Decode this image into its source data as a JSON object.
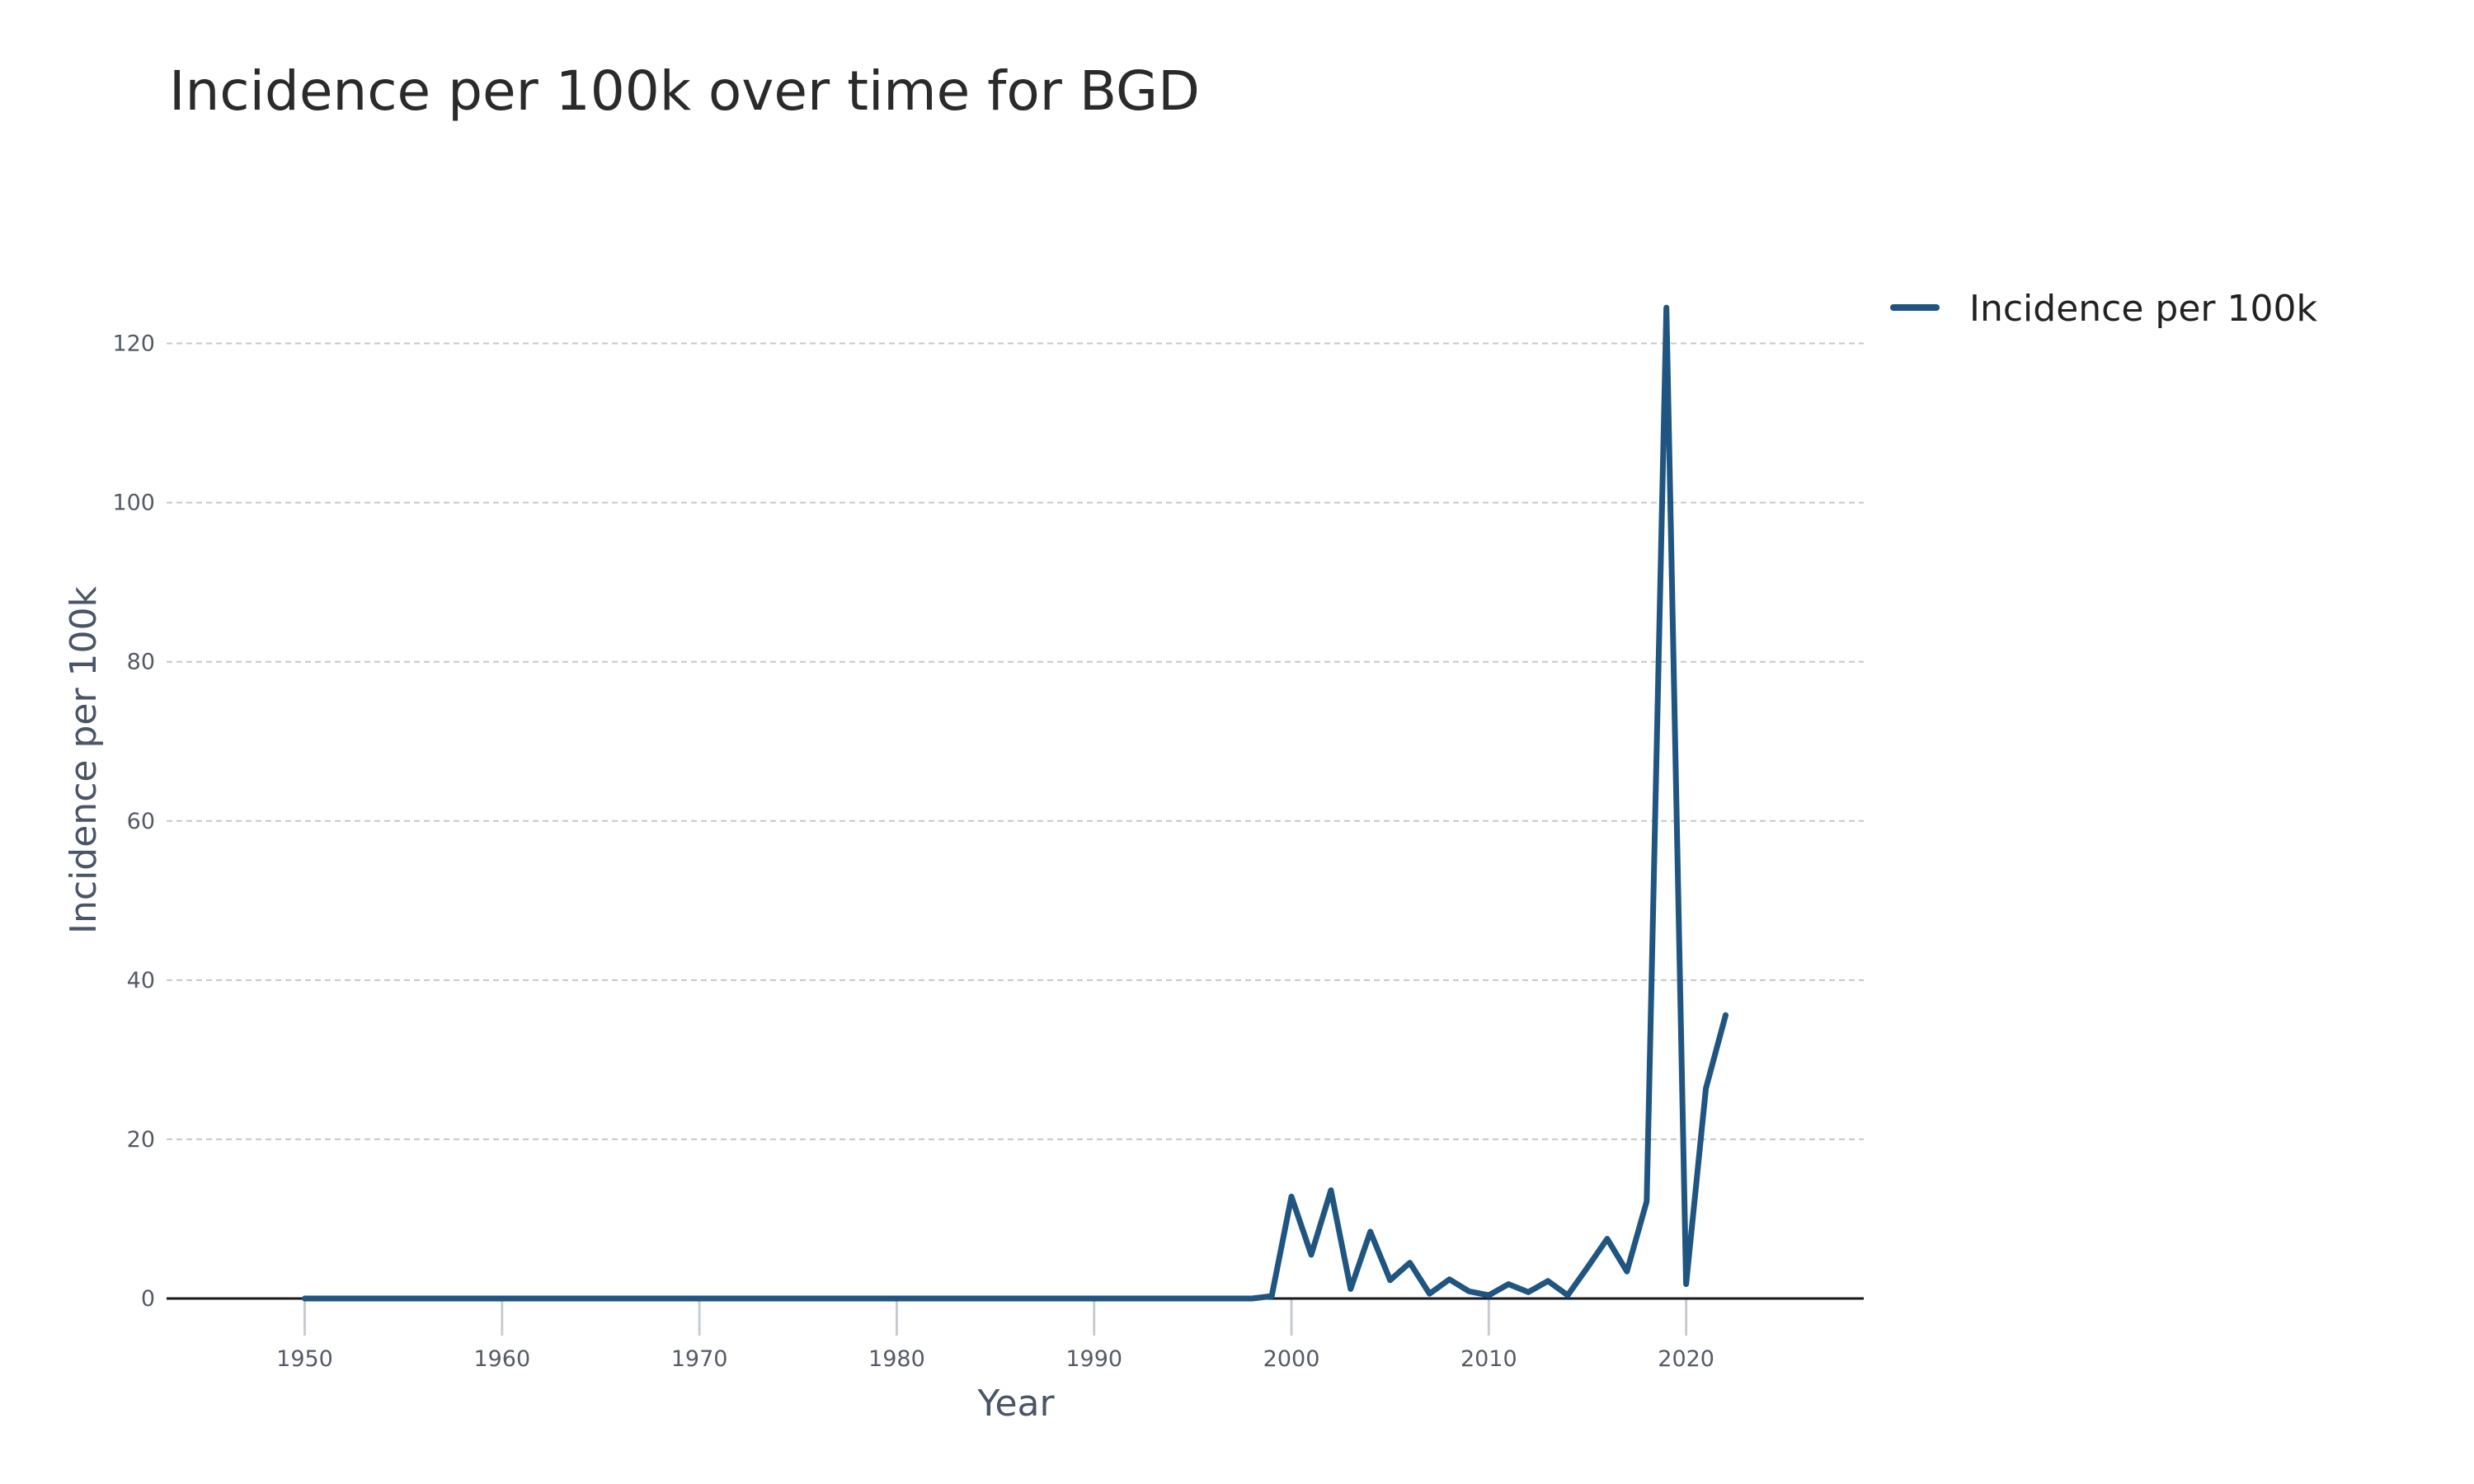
{
  "chart_data": {
    "type": "line",
    "title": "Incidence per 100k over time for BGD",
    "xlabel": "Year",
    "ylabel": "Incidence per 100k",
    "xlim": [
      1943,
      2029
    ],
    "ylim": [
      0,
      130
    ],
    "x_ticks": [
      1950,
      1960,
      1970,
      1980,
      1990,
      2000,
      2010,
      2020
    ],
    "y_ticks": [
      0,
      20,
      40,
      60,
      80,
      100,
      120
    ],
    "grid": "horizontal dashed",
    "legend_position": "top-right outside",
    "series": [
      {
        "name": "Incidence per 100k",
        "color": "#1f5580",
        "x": [
          1950,
          1951,
          1952,
          1953,
          1954,
          1955,
          1956,
          1957,
          1958,
          1959,
          1960,
          1961,
          1962,
          1963,
          1964,
          1965,
          1966,
          1967,
          1968,
          1969,
          1970,
          1971,
          1972,
          1973,
          1974,
          1975,
          1976,
          1977,
          1978,
          1979,
          1980,
          1981,
          1982,
          1983,
          1984,
          1985,
          1986,
          1987,
          1988,
          1989,
          1990,
          1991,
          1992,
          1993,
          1994,
          1995,
          1996,
          1997,
          1998,
          1999,
          2000,
          2001,
          2002,
          2003,
          2004,
          2005,
          2006,
          2007,
          2008,
          2009,
          2010,
          2011,
          2012,
          2013,
          2014,
          2015,
          2016,
          2017,
          2018,
          2019,
          2020,
          2021,
          2022
        ],
        "y": [
          0,
          0,
          0,
          0,
          0,
          0,
          0,
          0,
          0,
          0,
          0,
          0,
          0,
          0,
          0,
          0,
          0,
          0,
          0,
          0,
          0,
          0,
          0,
          0,
          0,
          0,
          0,
          0,
          0,
          0,
          0,
          0,
          0,
          0,
          0,
          0,
          0,
          0,
          0,
          0,
          0,
          0,
          0,
          0,
          0,
          0,
          0,
          0,
          0,
          0.3,
          12.8,
          5.5,
          13.6,
          1.2,
          8.4,
          2.3,
          4.5,
          0.6,
          2.4,
          0.9,
          0.4,
          1.8,
          0.8,
          2.2,
          0.4,
          3.9,
          7.5,
          3.4,
          12.2,
          124.5,
          1.8,
          26.4,
          35.6
        ]
      }
    ]
  }
}
